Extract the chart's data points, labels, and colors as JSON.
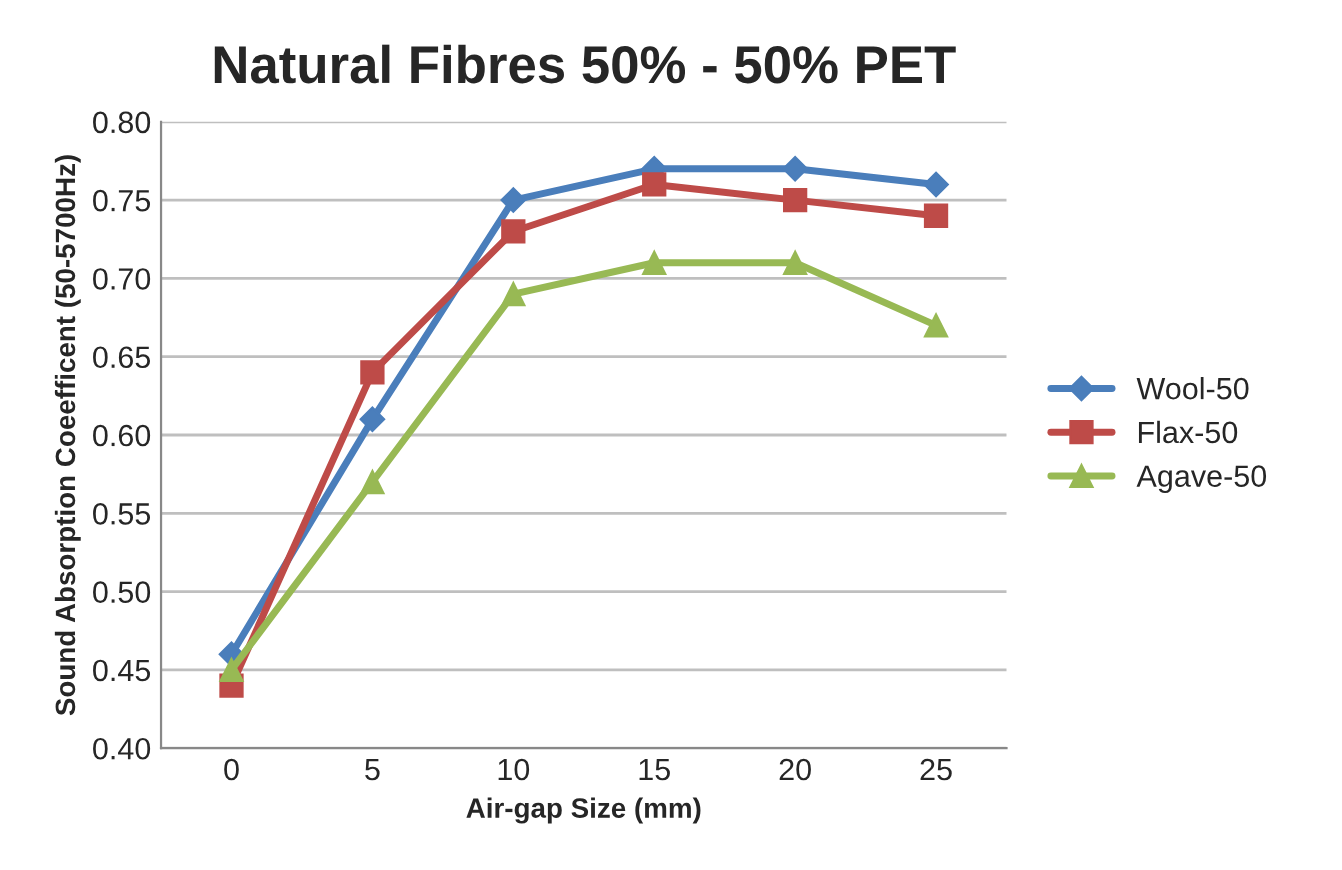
{
  "chart_data": {
    "type": "line",
    "title": "Natural Fibres 50% - 50% PET",
    "xlabel": "Air-gap Size (mm)",
    "ylabel": "Sound Absorption Coeefficent (50-5700Hz)",
    "categories": [
      "0",
      "5",
      "10",
      "15",
      "20",
      "25"
    ],
    "series": [
      {
        "name": "Wool-50",
        "color": "#4a7ebb",
        "marker": "diamond",
        "values": [
          0.46,
          0.61,
          0.75,
          0.77,
          0.77,
          0.76
        ]
      },
      {
        "name": "Flax-50",
        "color": "#be4b48",
        "marker": "square",
        "values": [
          0.44,
          0.64,
          0.73,
          0.76,
          0.75,
          0.74
        ]
      },
      {
        "name": "Agave-50",
        "color": "#98b954",
        "marker": "triangle",
        "values": [
          0.45,
          0.57,
          0.69,
          0.71,
          0.71,
          0.67
        ]
      }
    ],
    "ylim": [
      0.4,
      0.8
    ],
    "yticks": [
      {
        "value": 0.4,
        "label": "0.40"
      },
      {
        "value": 0.45,
        "label": "0.45"
      },
      {
        "value": 0.5,
        "label": "0.50"
      },
      {
        "value": 0.55,
        "label": "0.55"
      },
      {
        "value": 0.6,
        "label": "0.60"
      },
      {
        "value": 0.65,
        "label": "0.65"
      },
      {
        "value": 0.7,
        "label": "0.70"
      },
      {
        "value": 0.75,
        "label": "0.75"
      },
      {
        "value": 0.8,
        "label": "0.80"
      }
    ],
    "grid": "y",
    "legend": "right",
    "line_style": "solid"
  }
}
